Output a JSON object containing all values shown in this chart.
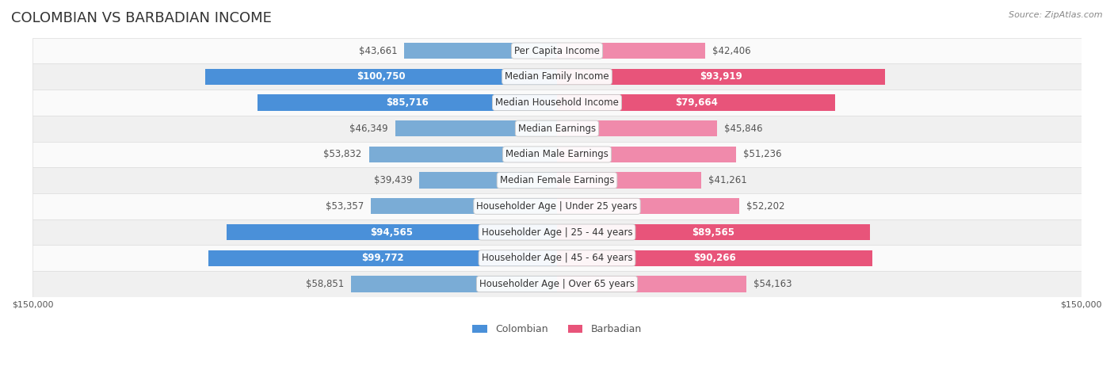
{
  "title": "COLOMBIAN VS BARBADIAN INCOME",
  "source": "Source: ZipAtlas.com",
  "categories": [
    "Per Capita Income",
    "Median Family Income",
    "Median Household Income",
    "Median Earnings",
    "Median Male Earnings",
    "Median Female Earnings",
    "Householder Age | Under 25 years",
    "Householder Age | 25 - 44 years",
    "Householder Age | 45 - 64 years",
    "Householder Age | Over 65 years"
  ],
  "colombian": [
    43661,
    100750,
    85716,
    46349,
    53832,
    39439,
    53357,
    94565,
    99772,
    58851
  ],
  "barbadian": [
    42406,
    93919,
    79664,
    45846,
    51236,
    41261,
    52202,
    89565,
    90266,
    54163
  ],
  "colombian_labels": [
    "$43,661",
    "$100,750",
    "$85,716",
    "$46,349",
    "$53,832",
    "$39,439",
    "$53,357",
    "$94,565",
    "$99,772",
    "$58,851"
  ],
  "barbadian_labels": [
    "$42,406",
    "$93,919",
    "$79,664",
    "$45,846",
    "$51,236",
    "$41,261",
    "$52,202",
    "$89,565",
    "$90,266",
    "$54,163"
  ],
  "max_val": 150000,
  "col_color": "#7aacd6",
  "bar_color": "#f08aab",
  "col_color_dark": "#4a90d9",
  "bar_color_dark": "#e8547a",
  "bg_color": "#f5f5f5",
  "row_bg_light": "#fafafa",
  "row_bg_dark": "#f0f0f0",
  "title_fontsize": 13,
  "label_fontsize": 8.5,
  "category_fontsize": 8.5,
  "axis_label_fontsize": 8,
  "legend_fontsize": 9
}
